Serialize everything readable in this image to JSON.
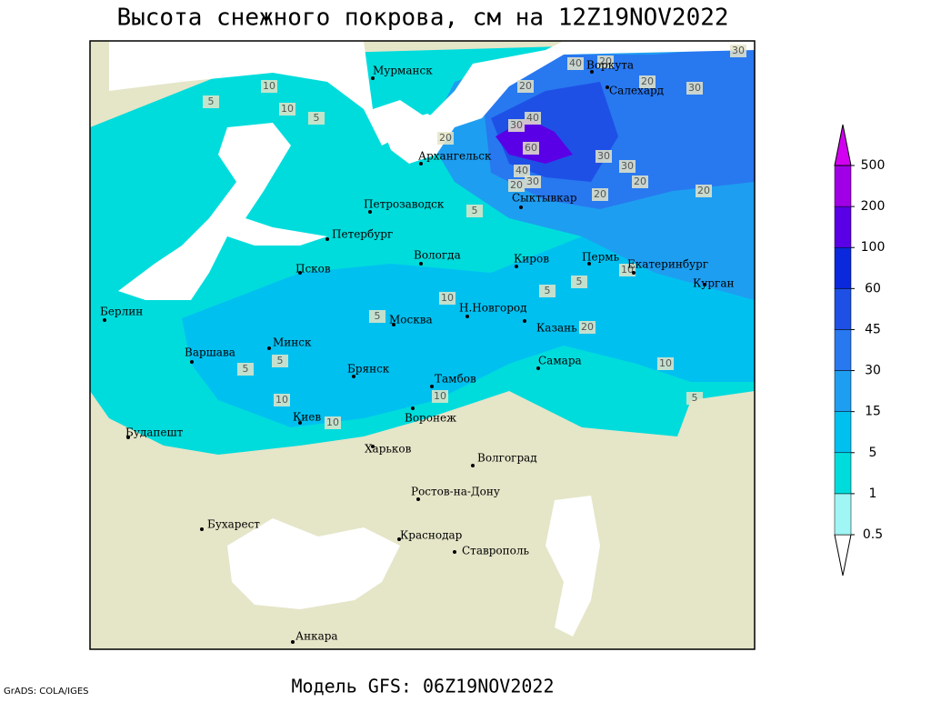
{
  "title": "Высота снежного покрова, см на 12Z19NOV2022",
  "model": "Модель GFS: 06Z19NOV2022",
  "credit": "GrADS: COLA/IGES",
  "cities": [
    "Мурманск",
    "Воркута",
    "Салехард",
    "Архангельск",
    "Сыктывкар",
    "Петрозаводск",
    "Петербург",
    "Вологда",
    "Киров",
    "Пермь",
    "Екатеринбург",
    "Курган",
    "Псков",
    "Берлин",
    "Н.Новгород",
    "Москва",
    "Казань",
    "Минск",
    "Варшава",
    "Самара",
    "Брянск",
    "Тамбов",
    "Воронеж",
    "Киев",
    "Будапешт",
    "Харьков",
    "Волгоград",
    "Ростов-на-Дону",
    "Бухарест",
    "Краснодар",
    "Ставрополь",
    "Анкара"
  ],
  "contour_labels": [
    10,
    5,
    10,
    5,
    20,
    40,
    20,
    20,
    30,
    30,
    20,
    40,
    30,
    60,
    40,
    20,
    30,
    30,
    30,
    20,
    20,
    20,
    5,
    5,
    10,
    5,
    10,
    5,
    20,
    10,
    5,
    5,
    10,
    10,
    10,
    5
  ],
  "colorbar": {
    "levels": [
      0.5,
      1,
      5,
      15,
      30,
      45,
      60,
      100,
      200,
      500
    ],
    "colors": [
      "#ffffff",
      "#a0f5f5",
      "#00dcdc",
      "#00c0f0",
      "#1e9ef0",
      "#2878f0",
      "#1e50e6",
      "#0a28dc",
      "#5a00e6",
      "#a000e6",
      "#d200f0"
    ]
  }
}
